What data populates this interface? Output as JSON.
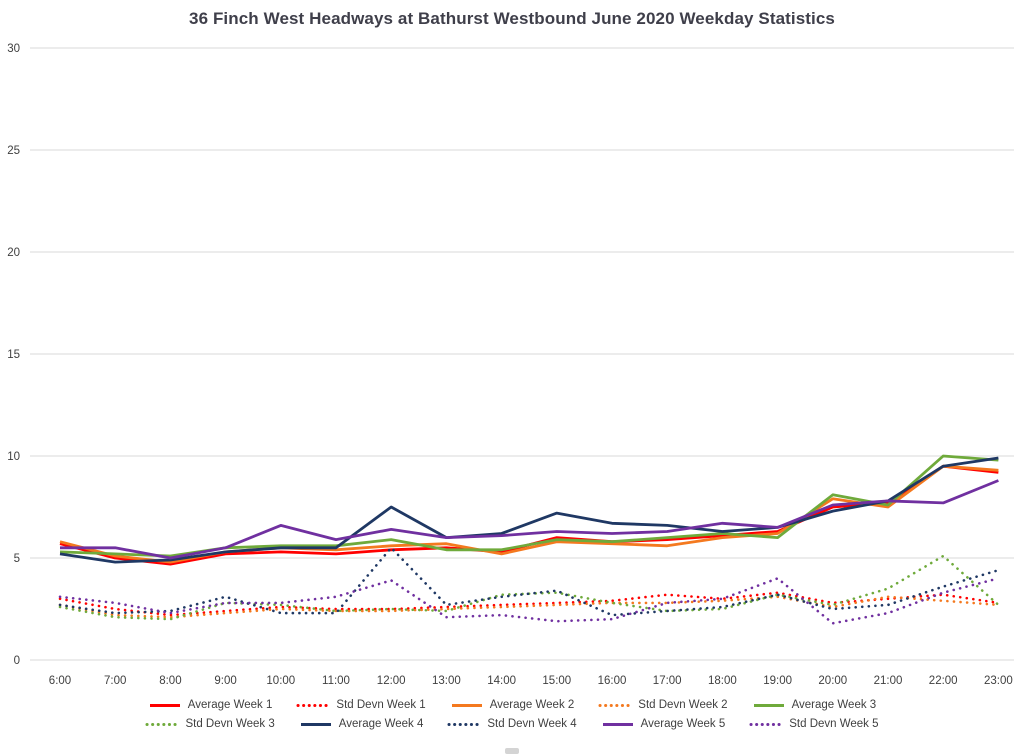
{
  "title": "36 Finch West Headways at Bathurst Westbound June 2020 Weekday Statistics",
  "footer_icon": "embed-glyph-icon",
  "colors": {
    "week1": "#ff0000",
    "week2": "#f4791f",
    "week3": "#6faa3b",
    "week4": "#1f3864",
    "week5": "#7030a0",
    "gridline": "#d9d9d9",
    "text": "#404040"
  },
  "chart_data": {
    "type": "line",
    "title": "36 Finch West Headways at Bathurst Westbound June 2020 Weekday Statistics",
    "xlabel": "",
    "ylabel": "",
    "ylim": [
      0,
      30
    ],
    "yticks": [
      0,
      5,
      10,
      15,
      20,
      25,
      30
    ],
    "grid": true,
    "legend_position": "bottom",
    "x": [
      "6:00",
      "7:00",
      "8:00",
      "9:00",
      "10:00",
      "11:00",
      "12:00",
      "13:00",
      "14:00",
      "15:00",
      "16:00",
      "17:00",
      "18:00",
      "19:00",
      "20:00",
      "21:00",
      "22:00",
      "23:00"
    ],
    "series": [
      {
        "name": "Average Week 1",
        "style": "solid",
        "color": "#ff0000",
        "values": [
          5.7,
          5.0,
          4.7,
          5.2,
          5.3,
          5.2,
          5.4,
          5.5,
          5.3,
          6.0,
          5.8,
          5.9,
          6.1,
          6.3,
          7.5,
          7.7,
          9.5,
          9.2
        ]
      },
      {
        "name": "Std Devn Week 1",
        "style": "dotted",
        "color": "#ff0000",
        "values": [
          3.0,
          2.5,
          2.2,
          2.4,
          2.6,
          2.5,
          2.5,
          2.6,
          2.7,
          2.8,
          2.9,
          3.2,
          3.0,
          3.3,
          2.8,
          3.0,
          3.2,
          2.8
        ]
      },
      {
        "name": "Average Week 2",
        "style": "solid",
        "color": "#f4791f",
        "values": [
          5.8,
          5.1,
          4.8,
          5.3,
          5.5,
          5.4,
          5.6,
          5.7,
          5.2,
          5.8,
          5.7,
          5.6,
          6.0,
          6.2,
          7.9,
          7.5,
          9.5,
          9.3
        ]
      },
      {
        "name": "Std Devn Week 2",
        "style": "dotted",
        "color": "#f4791f",
        "values": [
          2.7,
          2.2,
          2.1,
          2.3,
          2.5,
          2.4,
          2.4,
          2.5,
          2.6,
          2.7,
          2.8,
          2.8,
          2.9,
          3.1,
          2.6,
          3.1,
          2.9,
          2.7
        ]
      },
      {
        "name": "Average Week 3",
        "style": "solid",
        "color": "#6faa3b",
        "values": [
          5.3,
          5.2,
          5.1,
          5.5,
          5.6,
          5.6,
          5.9,
          5.4,
          5.4,
          5.9,
          5.8,
          6.0,
          6.2,
          6.0,
          8.1,
          7.6,
          10.0,
          9.8
        ]
      },
      {
        "name": "Std Devn Week 3",
        "style": "dotted",
        "color": "#6faa3b",
        "values": [
          2.6,
          2.1,
          2.0,
          2.8,
          2.7,
          2.4,
          2.5,
          2.4,
          3.2,
          3.3,
          2.8,
          2.4,
          2.5,
          3.2,
          2.7,
          3.5,
          5.1,
          2.7
        ]
      },
      {
        "name": "Average Week 4",
        "style": "solid",
        "color": "#1f3864",
        "values": [
          5.2,
          4.8,
          4.9,
          5.3,
          5.5,
          5.5,
          7.5,
          6.0,
          6.2,
          7.2,
          6.7,
          6.6,
          6.3,
          6.5,
          7.3,
          7.8,
          9.5,
          9.9
        ]
      },
      {
        "name": "Std Devn Week 4",
        "style": "dotted",
        "color": "#1f3864",
        "values": [
          2.7,
          2.3,
          2.4,
          3.1,
          2.3,
          2.3,
          5.5,
          2.7,
          3.1,
          3.4,
          2.2,
          2.4,
          2.6,
          3.2,
          2.5,
          2.7,
          3.6,
          4.4
        ]
      },
      {
        "name": "Average Week 5",
        "style": "solid",
        "color": "#7030a0",
        "values": [
          5.5,
          5.5,
          5.0,
          5.5,
          6.6,
          5.9,
          6.4,
          6.0,
          6.1,
          6.3,
          6.2,
          6.3,
          6.7,
          6.5,
          7.6,
          7.8,
          7.7,
          8.8
        ]
      },
      {
        "name": "Std Devn Week 5",
        "style": "dotted",
        "color": "#7030a0",
        "values": [
          3.1,
          2.8,
          2.3,
          2.8,
          2.8,
          3.1,
          3.9,
          2.1,
          2.2,
          1.9,
          2.0,
          2.8,
          3.0,
          4.0,
          1.8,
          2.3,
          3.3,
          4.0
        ]
      }
    ]
  }
}
